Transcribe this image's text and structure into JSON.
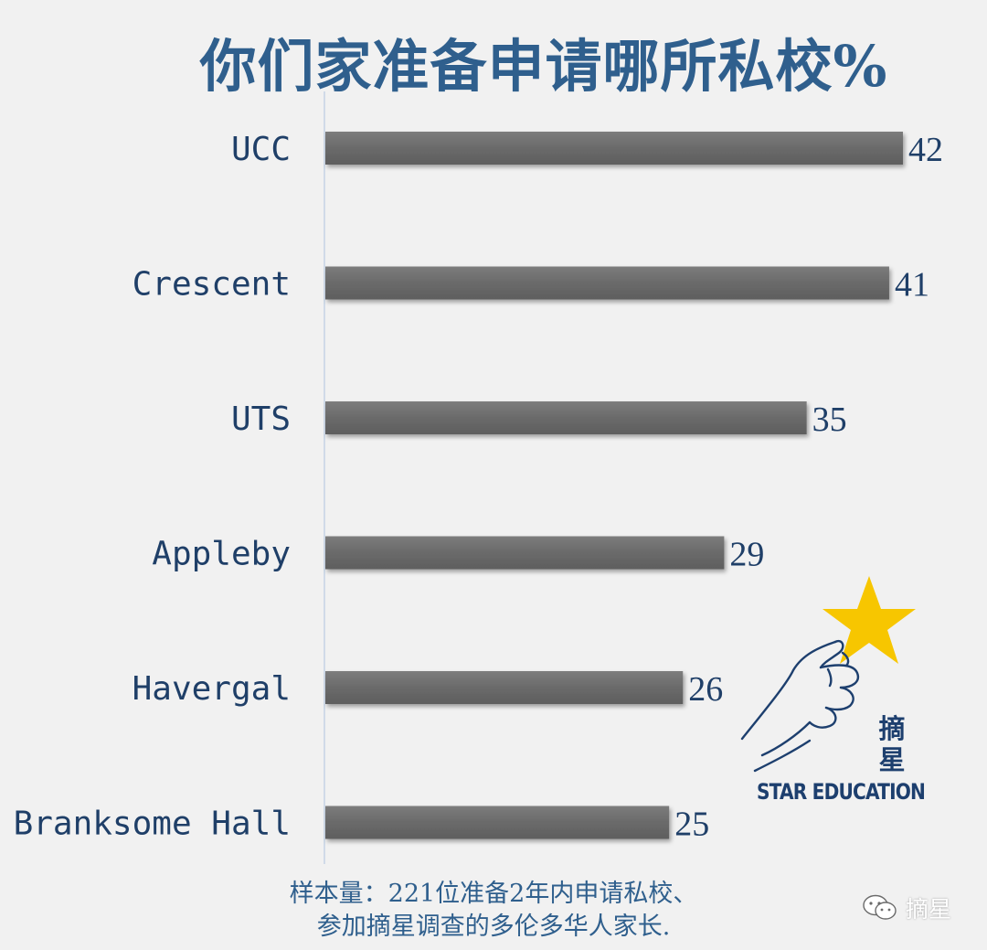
{
  "chart_data": {
    "type": "bar",
    "orientation": "horizontal",
    "title": "你们家准备申请哪所私校%",
    "categories": [
      "UCC",
      "Crescent",
      "UTS",
      "Appleby",
      "Havergal",
      "Branksome Hall"
    ],
    "values": [
      42,
      41,
      35,
      29,
      26,
      25
    ],
    "xlim": [
      0,
      42
    ],
    "grid": false,
    "bar_color": "#6d6d6d",
    "axis_color": "#c5d3e6"
  },
  "footnote": {
    "line1": "样本量：221位准备2年内申请私校、",
    "line2": "参加摘星调查的多伦多华人家长."
  },
  "logo": {
    "chinese": "摘星",
    "english": "STAR EDUCATION",
    "star_color": "#f7c600",
    "ink_color": "#1d3f6e"
  },
  "watermark": {
    "label": "摘星",
    "icon": "wechat-icon"
  }
}
